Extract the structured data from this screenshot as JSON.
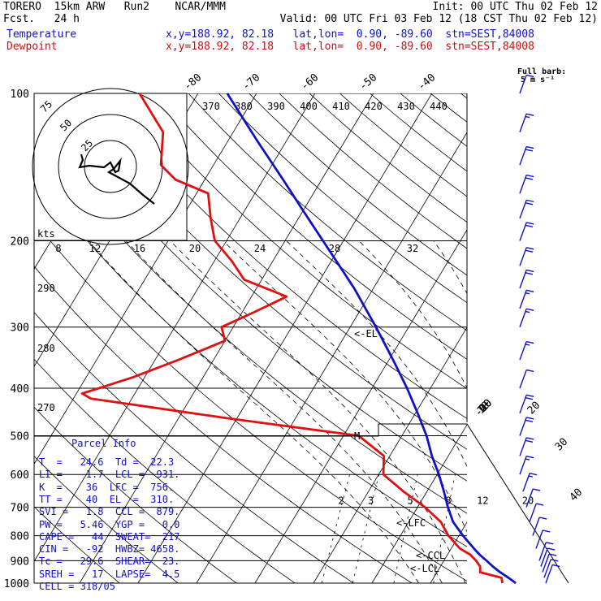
{
  "header": {
    "model_line": "TORERO  15km ARW   Run2    NCAR/MMM",
    "fcst_line": "Fcst.   24 h",
    "init_line": "Init: 00 UTC Thu 02 Feb 12",
    "valid_line": "Valid: 00 UTC Fri 03 Feb 12 (18 CST Thu 02 Feb 12)",
    "temp_label": "Temperature",
    "dew_label": "Dewpoint",
    "loc_text": "x,y=188.92, 82.18   lat,lon=  0.90, -89.60  stn=SEST,84008"
  },
  "legend": {
    "line1": "Full barb:",
    "line2": "5 m s⁻¹"
  },
  "colors": {
    "temperature": "#1010c8",
    "dewpoint": "#e01010",
    "frame": "#000000"
  },
  "chart_data": {
    "type": "line",
    "title": "",
    "ylabel": "",
    "xlabel": "",
    "pressure_levels": [
      100,
      200,
      300,
      400,
      500,
      600,
      700,
      800,
      900,
      1000
    ],
    "isotherm_labels_top": [
      "-80",
      "-70",
      "-60",
      "-50",
      "-40"
    ],
    "isotherm_labels_right": [
      "-30",
      "-20",
      "-10",
      "0",
      "10",
      "20",
      "30",
      "40"
    ],
    "theta_labels_top": [
      "370",
      "380",
      "390",
      "400",
      "410",
      "420",
      "430",
      "440"
    ],
    "theta_labels_left": [
      "290",
      "280",
      "270"
    ],
    "mixing_ratio_labels": [
      "2",
      "3",
      "5",
      "8",
      "12",
      "20"
    ],
    "thetae_labels_200": [
      "8",
      "12",
      "16",
      "20",
      "24",
      "28",
      "32"
    ],
    "level_markers": [
      "<-EL",
      "<-LFC",
      "<-CCL",
      "<-LCL",
      "M"
    ],
    "hodograph_ring_labels": [
      "75",
      "50",
      "25"
    ],
    "hodograph_unit": "kts",
    "series": [
      {
        "name": "Temperature",
        "p": [
          1000,
          975,
          950,
          925,
          900,
          875,
          850,
          800,
          750,
          700,
          650,
          600,
          550,
          500,
          450,
          400,
          350,
          300,
          250,
          200,
          175,
          150,
          125,
          100
        ],
        "t": [
          24.6,
          22.8,
          20.8,
          19.0,
          17.3,
          15.5,
          13.9,
          10.7,
          7.6,
          5.2,
          2.9,
          0.3,
          -2.8,
          -5.8,
          -9.6,
          -14.0,
          -19.3,
          -25.6,
          -33.3,
          -43.5,
          -49.6,
          -56.6,
          -65.0,
          -75.0
        ]
      },
      {
        "name": "Dewpoint",
        "p": [
          1000,
          975,
          950,
          925,
          900,
          875,
          850,
          800,
          750,
          700,
          650,
          600,
          550,
          500,
          460,
          420,
          410,
          380,
          350,
          320,
          300,
          280,
          260,
          240,
          220,
          200,
          180,
          160,
          150,
          140,
          120,
          100
        ],
        "t": [
          22.3,
          21.6,
          17.4,
          16.8,
          15.5,
          13.9,
          11.5,
          8.2,
          5.5,
          1.3,
          -4.0,
          -9.2,
          -11.0,
          -17.4,
          -42.0,
          -67.0,
          -69.0,
          -62.0,
          -56.0,
          -50.0,
          -52.0,
          -48.0,
          -44.0,
          -53.0,
          -57.0,
          -62.0,
          -65.0,
          -68.0,
          -75.0,
          -79.0,
          -82.0,
          -90.0
        ]
      }
    ],
    "wind_barbs": [
      {
        "p": 1000,
        "kts": 8
      },
      {
        "p": 975,
        "kts": 9
      },
      {
        "p": 950,
        "kts": 10
      },
      {
        "p": 925,
        "kts": 11
      },
      {
        "p": 900,
        "kts": 11
      },
      {
        "p": 850,
        "kts": 9
      },
      {
        "p": 800,
        "kts": 8
      },
      {
        "p": 750,
        "kts": 10
      },
      {
        "p": 700,
        "kts": 12
      },
      {
        "p": 650,
        "kts": 14
      },
      {
        "p": 600,
        "kts": 16
      },
      {
        "p": 550,
        "kts": 18
      },
      {
        "p": 500,
        "kts": 22
      },
      {
        "p": 450,
        "kts": 20
      },
      {
        "p": 400,
        "kts": 12
      },
      {
        "p": 350,
        "kts": 14
      },
      {
        "p": 300,
        "kts": 15
      },
      {
        "p": 275,
        "kts": 16
      },
      {
        "p": 250,
        "kts": 18
      },
      {
        "p": 225,
        "kts": 20
      },
      {
        "p": 200,
        "kts": 22
      },
      {
        "p": 180,
        "kts": 22
      },
      {
        "p": 160,
        "kts": 20
      },
      {
        "p": 140,
        "kts": 18
      },
      {
        "p": 120,
        "kts": 15
      },
      {
        "p": 100,
        "kts": 10
      }
    ]
  },
  "parcel_info": {
    "title": "Parcel Info",
    "rows": [
      "T  =   24.6  Td =  22.3",
      "LI =    1.7  LCL =  931.",
      "K  =    36  LFC =  756.",
      "TT =    40  EL  =  310.",
      "SVI =   1.8  CCL =  879.",
      "PW =   5.46  YGP =   0.0",
      "CAPE =   44  SWEAT=  217",
      "CIN =   -92  HWBZ= 4658.",
      "Tc =   29.6  SHEAR=  23.",
      "SREH =   17  LAPSE=  4.5",
      "CELL = 318/05"
    ]
  }
}
